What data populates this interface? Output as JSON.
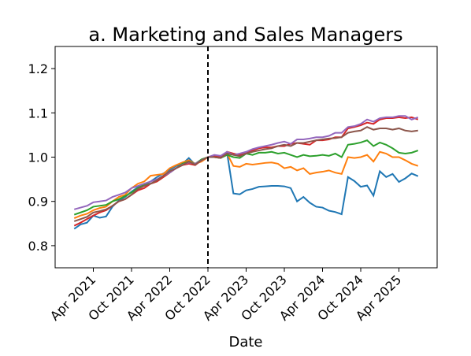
{
  "chart_data": {
    "type": "line",
    "title": "a. Marketing and Sales Managers",
    "x_label": "Date",
    "x": [
      "2021-01",
      "2021-02",
      "2021-03",
      "2021-04",
      "2021-05",
      "2021-06",
      "2021-07",
      "2021-08",
      "2021-09",
      "2021-10",
      "2021-11",
      "2021-12",
      "2022-01",
      "2022-02",
      "2022-03",
      "2022-04",
      "2022-05",
      "2022-06",
      "2022-07",
      "2022-08",
      "2022-09",
      "2022-10",
      "2022-11",
      "2022-12",
      "2023-01",
      "2023-02",
      "2023-03",
      "2023-04",
      "2023-05",
      "2023-06",
      "2023-07",
      "2023-08",
      "2023-09",
      "2023-10",
      "2023-11",
      "2023-12",
      "2024-01",
      "2024-02",
      "2024-03",
      "2024-04",
      "2024-05",
      "2024-06",
      "2024-07",
      "2024-08",
      "2024-09",
      "2024-10",
      "2024-11",
      "2024-12",
      "2025-01",
      "2025-02",
      "2025-03",
      "2025-04",
      "2025-05",
      "2025-06",
      "2025-07"
    ],
    "series": [
      {
        "color": "#1f77b4",
        "values": [
          0.838,
          0.848,
          0.852,
          0.868,
          0.863,
          0.866,
          0.888,
          0.902,
          0.91,
          0.922,
          0.932,
          0.938,
          0.945,
          0.955,
          0.963,
          0.972,
          0.98,
          0.985,
          0.998,
          0.983,
          0.993,
          1.0,
          1.003,
          1.0,
          1.01,
          0.918,
          0.916,
          0.925,
          0.928,
          0.933,
          0.934,
          0.935,
          0.935,
          0.934,
          0.93,
          0.9,
          0.91,
          0.897,
          0.888,
          0.886,
          0.879,
          0.876,
          0.871,
          0.955,
          0.946,
          0.933,
          0.936,
          0.913,
          0.968,
          0.955,
          0.962,
          0.944,
          0.952,
          0.963,
          0.957
        ]
      },
      {
        "color": "#ff7f0e",
        "values": [
          0.862,
          0.868,
          0.872,
          0.88,
          0.885,
          0.888,
          0.9,
          0.91,
          0.915,
          0.93,
          0.94,
          0.945,
          0.958,
          0.96,
          0.962,
          0.975,
          0.982,
          0.988,
          0.993,
          0.985,
          0.99,
          1.0,
          1.0,
          0.998,
          1.008,
          0.98,
          0.978,
          0.985,
          0.983,
          0.985,
          0.987,
          0.988,
          0.985,
          0.975,
          0.978,
          0.97,
          0.975,
          0.962,
          0.965,
          0.967,
          0.97,
          0.965,
          0.962,
          1.0,
          0.998,
          1.0,
          1.005,
          0.99,
          1.012,
          1.008,
          1.0,
          1.0,
          0.993,
          0.985,
          0.98
        ]
      },
      {
        "color": "#2ca02c",
        "values": [
          0.87,
          0.875,
          0.88,
          0.888,
          0.89,
          0.892,
          0.9,
          0.905,
          0.912,
          0.92,
          0.93,
          0.938,
          0.94,
          0.945,
          0.955,
          0.965,
          0.975,
          0.985,
          0.99,
          0.985,
          0.995,
          1.0,
          1.0,
          0.998,
          1.005,
          1.0,
          0.998,
          1.008,
          1.005,
          1.01,
          1.01,
          1.012,
          1.008,
          1.01,
          1.005,
          1.0,
          1.005,
          1.002,
          1.003,
          1.005,
          1.003,
          1.008,
          1.0,
          1.028,
          1.03,
          1.033,
          1.038,
          1.025,
          1.033,
          1.028,
          1.02,
          1.01,
          1.008,
          1.01,
          1.015
        ]
      },
      {
        "color": "#d62728",
        "values": [
          0.845,
          0.852,
          0.86,
          0.868,
          0.875,
          0.88,
          0.89,
          0.9,
          0.905,
          0.915,
          0.925,
          0.93,
          0.94,
          0.945,
          0.955,
          0.965,
          0.975,
          0.982,
          0.985,
          0.982,
          0.993,
          1.0,
          1.003,
          1.0,
          1.012,
          1.008,
          1.005,
          1.01,
          1.015,
          1.02,
          1.022,
          1.022,
          1.025,
          1.025,
          1.03,
          1.032,
          1.03,
          1.028,
          1.038,
          1.038,
          1.04,
          1.045,
          1.045,
          1.065,
          1.068,
          1.072,
          1.078,
          1.075,
          1.085,
          1.088,
          1.088,
          1.09,
          1.088,
          1.09,
          1.085
        ]
      },
      {
        "color": "#9467bd",
        "values": [
          0.882,
          0.886,
          0.89,
          0.898,
          0.9,
          0.902,
          0.91,
          0.915,
          0.92,
          0.93,
          0.935,
          0.94,
          0.945,
          0.95,
          0.958,
          0.965,
          0.975,
          0.983,
          0.988,
          0.985,
          0.993,
          1.0,
          1.005,
          1.003,
          1.012,
          1.005,
          1.008,
          1.012,
          1.018,
          1.022,
          1.025,
          1.028,
          1.032,
          1.035,
          1.03,
          1.04,
          1.04,
          1.042,
          1.045,
          1.045,
          1.048,
          1.055,
          1.055,
          1.068,
          1.07,
          1.075,
          1.085,
          1.08,
          1.088,
          1.09,
          1.09,
          1.093,
          1.093,
          1.085,
          1.09
        ]
      },
      {
        "color": "#8c564b",
        "values": [
          0.855,
          0.86,
          0.865,
          0.875,
          0.878,
          0.882,
          0.89,
          0.9,
          0.905,
          0.915,
          0.928,
          0.935,
          0.94,
          0.948,
          0.958,
          0.968,
          0.975,
          0.982,
          0.99,
          0.983,
          0.993,
          1.0,
          1.0,
          0.998,
          1.008,
          1.005,
          1.002,
          1.008,
          1.012,
          1.015,
          1.018,
          1.02,
          1.025,
          1.028,
          1.025,
          1.032,
          1.032,
          1.035,
          1.038,
          1.04,
          1.042,
          1.043,
          1.045,
          1.055,
          1.058,
          1.06,
          1.068,
          1.062,
          1.065,
          1.065,
          1.062,
          1.065,
          1.06,
          1.058,
          1.06
        ]
      }
    ],
    "xlim": [
      "2020-10",
      "2025-10"
    ],
    "xticks": [
      {
        "value": "2021-04",
        "label": "Apr 2021"
      },
      {
        "value": "2021-10",
        "label": "Oct 2021"
      },
      {
        "value": "2022-04",
        "label": "Apr 2022"
      },
      {
        "value": "2022-10",
        "label": "Oct 2022"
      },
      {
        "value": "2023-04",
        "label": "Apr 2023"
      },
      {
        "value": "2023-10",
        "label": "Oct 2023"
      },
      {
        "value": "2024-04",
        "label": "Apr 2024"
      },
      {
        "value": "2024-10",
        "label": "Oct 2024"
      },
      {
        "value": "2025-04",
        "label": "Apr 2025"
      }
    ],
    "ylim": [
      0.75,
      1.25
    ],
    "yticks": [
      0.8,
      0.9,
      {
        "value": 1.0,
        "label": "1.0"
      },
      1.1,
      1.2
    ],
    "vline": "2022-10",
    "grid": false
  }
}
